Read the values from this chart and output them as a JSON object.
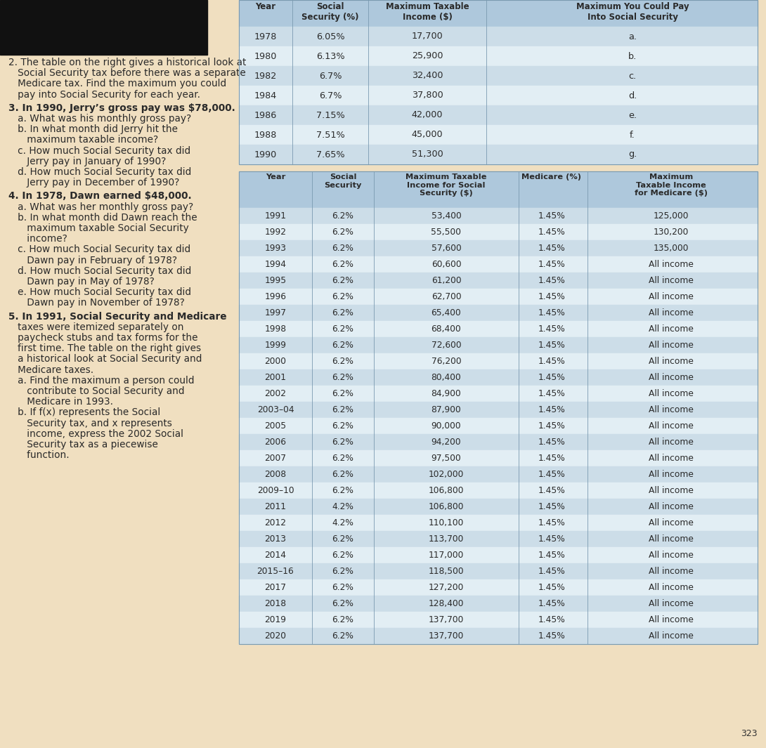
{
  "bg_color": "#f0dfc0",
  "table_header_color": "#aec8dc",
  "table_row_color1": "#ccdde8",
  "table_row_color2": "#e2eef4",
  "black_box_color": "#111111",
  "question2_lines": [
    [
      "2. The table on the right gives a historical look at",
      false
    ],
    [
      "   Social Security tax before there was a separate",
      false
    ],
    [
      "   Medicare tax. Find the maximum you could",
      false
    ],
    [
      "   pay into Social Security for each year.",
      false
    ]
  ],
  "question3_lines": [
    [
      "3. In 1990, Jerry’s gross pay was $78,000.",
      true
    ],
    [
      "   a. What was his monthly gross pay?",
      false
    ],
    [
      "   b. In what month did Jerry hit the",
      false
    ],
    [
      "      maximum taxable income?",
      false
    ],
    [
      "   c. How much Social Security tax did",
      false
    ],
    [
      "      Jerry pay in January of 1990?",
      false
    ],
    [
      "   d. How much Social Security tax did",
      false
    ],
    [
      "      Jerry pay in December of 1990?",
      false
    ]
  ],
  "question4_lines": [
    [
      "4. In 1978, Dawn earned $48,000.",
      true
    ],
    [
      "   a. What was her monthly gross pay?",
      false
    ],
    [
      "   b. In what month did Dawn reach the",
      false
    ],
    [
      "      maximum taxable Social Security",
      false
    ],
    [
      "      income?",
      false
    ],
    [
      "   c. How much Social Security tax did",
      false
    ],
    [
      "      Dawn pay in February of 1978?",
      false
    ],
    [
      "   d. How much Social Security tax did",
      false
    ],
    [
      "      Dawn pay in May of 1978?",
      false
    ],
    [
      "   e. How much Social Security tax did",
      false
    ],
    [
      "      Dawn pay in November of 1978?",
      false
    ]
  ],
  "question5_lines": [
    [
      "5. In 1991, Social Security and Medicare",
      true
    ],
    [
      "   taxes were itemized separately on",
      false
    ],
    [
      "   paycheck stubs and tax forms for the",
      false
    ],
    [
      "   first time. The table on the right gives",
      false
    ],
    [
      "   a historical look at Social Security and",
      false
    ],
    [
      "   Medicare taxes.",
      false
    ],
    [
      "   a. Find the maximum a person could",
      false
    ],
    [
      "      contribute to Social Security and",
      false
    ],
    [
      "      Medicare in 1993.",
      false
    ],
    [
      "   b. If f(x) represents the Social",
      false
    ],
    [
      "      Security tax, and x represents",
      false
    ],
    [
      "      income, express the 2002 Social",
      false
    ],
    [
      "      Security tax as a piecewise",
      false
    ],
    [
      "      function.",
      false
    ]
  ],
  "table1_rows": [
    [
      "1978",
      "6.05%",
      "17,700",
      "a."
    ],
    [
      "1980",
      "6.13%",
      "25,900",
      "b."
    ],
    [
      "1982",
      "6.7%",
      "32,400",
      "c."
    ],
    [
      "1984",
      "6.7%",
      "37,800",
      "d."
    ],
    [
      "1986",
      "7.15%",
      "42,000",
      "e."
    ],
    [
      "1988",
      "7.51%",
      "45,000",
      "f."
    ],
    [
      "1990",
      "7.65%",
      "51,300",
      "g."
    ]
  ],
  "table2_rows": [
    [
      "1991",
      "6.2%",
      "53,400",
      "1.45%",
      "125,000"
    ],
    [
      "1992",
      "6.2%",
      "55,500",
      "1.45%",
      "130,200"
    ],
    [
      "1993",
      "6.2%",
      "57,600",
      "1.45%",
      "135,000"
    ],
    [
      "1994",
      "6.2%",
      "60,600",
      "1.45%",
      "All income"
    ],
    [
      "1995",
      "6.2%",
      "61,200",
      "1.45%",
      "All income"
    ],
    [
      "1996",
      "6.2%",
      "62,700",
      "1.45%",
      "All income"
    ],
    [
      "1997",
      "6.2%",
      "65,400",
      "1.45%",
      "All income"
    ],
    [
      "1998",
      "6.2%",
      "68,400",
      "1.45%",
      "All income"
    ],
    [
      "1999",
      "6.2%",
      "72,600",
      "1.45%",
      "All income"
    ],
    [
      "2000",
      "6.2%",
      "76,200",
      "1.45%",
      "All income"
    ],
    [
      "2001",
      "6.2%",
      "80,400",
      "1.45%",
      "All income"
    ],
    [
      "2002",
      "6.2%",
      "84,900",
      "1.45%",
      "All income"
    ],
    [
      "2003–04",
      "6.2%",
      "87,900",
      "1.45%",
      "All income"
    ],
    [
      "2005",
      "6.2%",
      "90,000",
      "1.45%",
      "All income"
    ],
    [
      "2006",
      "6.2%",
      "94,200",
      "1.45%",
      "All income"
    ],
    [
      "2007",
      "6.2%",
      "97,500",
      "1.45%",
      "All income"
    ],
    [
      "2008",
      "6.2%",
      "102,000",
      "1.45%",
      "All income"
    ],
    [
      "2009–10",
      "6.2%",
      "106,800",
      "1.45%",
      "All income"
    ],
    [
      "2011",
      "4.2%",
      "106,800",
      "1.45%",
      "All income"
    ],
    [
      "2012",
      "4.2%",
      "110,100",
      "1.45%",
      "All income"
    ],
    [
      "2013",
      "6.2%",
      "113,700",
      "1.45%",
      "All income"
    ],
    [
      "2014",
      "6.2%",
      "117,000",
      "1.45%",
      "All income"
    ],
    [
      "2015–16",
      "6.2%",
      "118,500",
      "1.45%",
      "All income"
    ],
    [
      "2017",
      "6.2%",
      "127,200",
      "1.45%",
      "All income"
    ],
    [
      "2018",
      "6.2%",
      "128,400",
      "1.45%",
      "All income"
    ],
    [
      "2019",
      "6.2%",
      "137,700",
      "1.45%",
      "All income"
    ],
    [
      "2020",
      "6.2%",
      "137,700",
      "1.45%",
      "All income"
    ]
  ],
  "page_number": "323"
}
